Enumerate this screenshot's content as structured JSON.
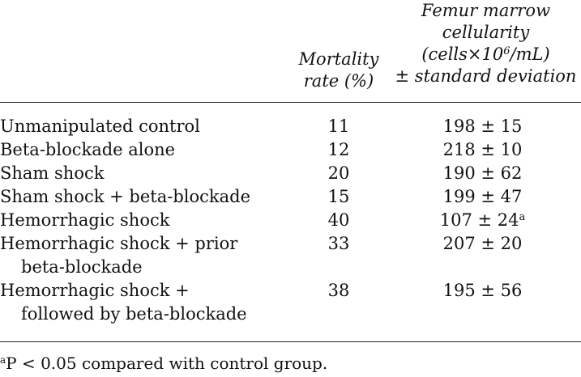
{
  "table": {
    "headers": {
      "mortality": [
        "Mortality",
        "rate (%)"
      ],
      "femur": [
        "Femur marrow",
        "cellularity",
        "(cells×10",
        "6",
        "/mL)",
        "± standard deviation"
      ]
    },
    "rows": [
      {
        "group": [
          "Unmanipulated control"
        ],
        "mortality": "11",
        "cellularity": "198 ± 15",
        "sup": ""
      },
      {
        "group": [
          "Beta-blockade alone"
        ],
        "mortality": "12",
        "cellularity": "218 ± 10",
        "sup": ""
      },
      {
        "group": [
          "Sham shock"
        ],
        "mortality": "20",
        "cellularity": "190 ± 62",
        "sup": ""
      },
      {
        "group": [
          "Sham shock + beta-blockade"
        ],
        "mortality": "15",
        "cellularity": "199 ± 47",
        "sup": ""
      },
      {
        "group": [
          "Hemorrhagic shock"
        ],
        "mortality": "40",
        "cellularity": "107 ± 24",
        "sup": "a"
      },
      {
        "group": [
          "Hemorrhagic shock + prior",
          "beta-blockade"
        ],
        "mortality": "33",
        "cellularity": "207 ± 20",
        "sup": ""
      },
      {
        "group": [
          "Hemorrhagic shock +",
          "followed by beta-blockade"
        ],
        "mortality": "38",
        "cellularity": "195 ± 56",
        "sup": ""
      }
    ]
  },
  "footnote": {
    "marker": "a",
    "text": "P < 0.05 compared with control group."
  }
}
